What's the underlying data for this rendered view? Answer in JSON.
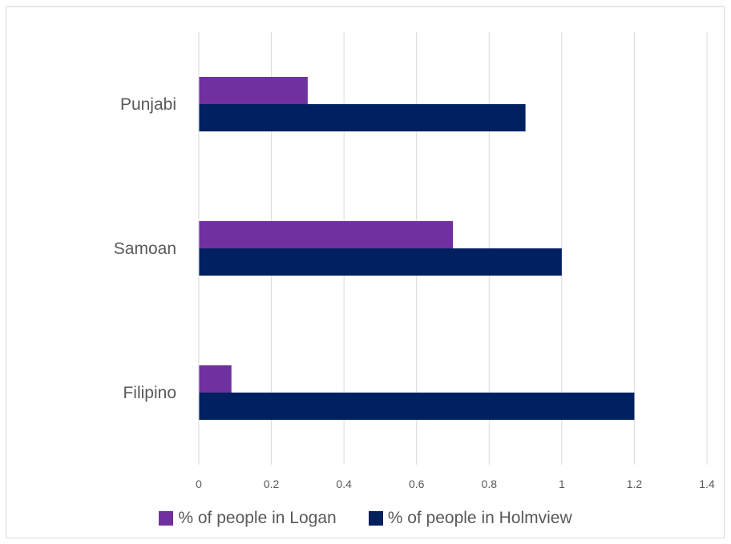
{
  "chart_data": {
    "type": "bar",
    "orientation": "horizontal",
    "categories": [
      "Filipino",
      "Samoan",
      "Punjabi"
    ],
    "series": [
      {
        "name": "% of people in Logan",
        "values": [
          0.09,
          0.7,
          0.3
        ],
        "color": "#7030a0"
      },
      {
        "name": "% of people in Holmview",
        "values": [
          1.2,
          1.0,
          0.9
        ],
        "color": "#002060"
      }
    ],
    "xlim": [
      0,
      1.4
    ],
    "xticks": [
      "0",
      "0.2",
      "0.4",
      "0.6",
      "0.8",
      "1",
      "1.2",
      "1.4"
    ],
    "grid": true,
    "legend_position": "bottom"
  }
}
